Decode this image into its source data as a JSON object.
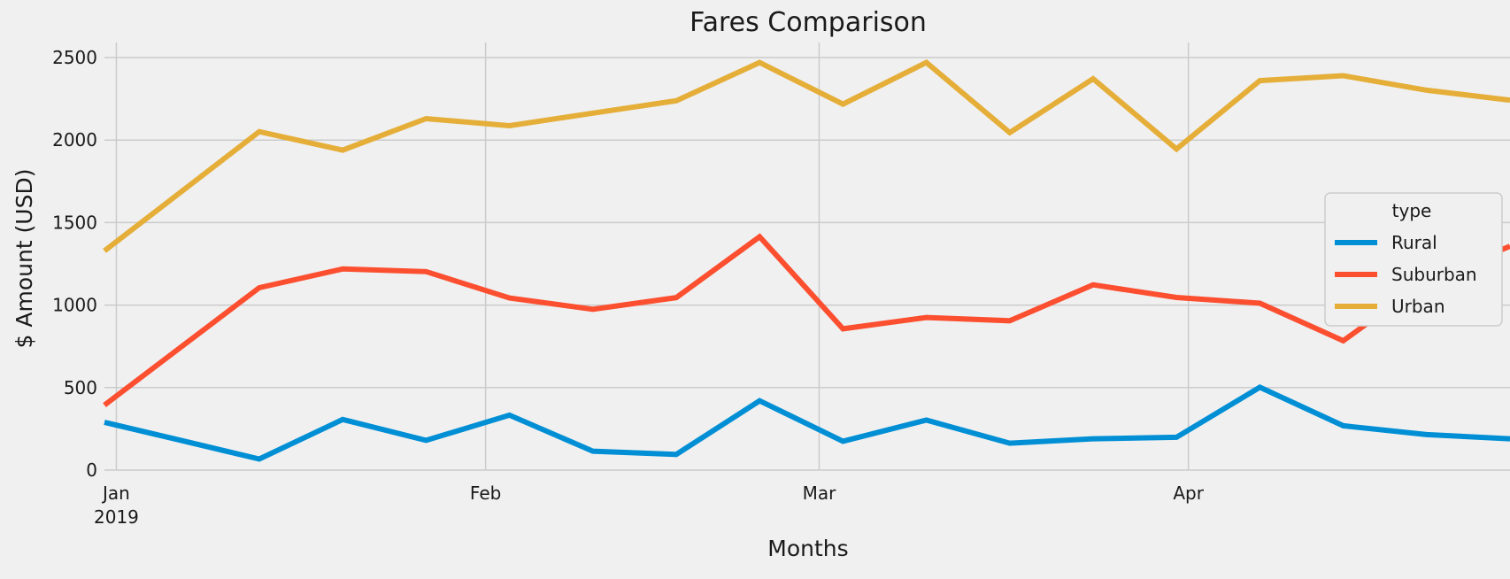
{
  "chart_data": {
    "type": "line",
    "title": "Fares Comparison",
    "xlabel": "Months",
    "ylabel": "$ Amount (USD)",
    "ylim": [
      0,
      2600
    ],
    "x_start": "2018-12-31",
    "x_end": "2019-04-28",
    "x": [
      "2019-01-06",
      "2019-01-13",
      "2019-01-20",
      "2019-01-27",
      "2019-02-03",
      "2019-02-10",
      "2019-02-17",
      "2019-02-24",
      "2019-03-03",
      "2019-03-10",
      "2019-03-17",
      "2019-03-24",
      "2019-03-31",
      "2019-04-07",
      "2019-04-14",
      "2019-04-21",
      "2019-04-28"
    ],
    "x_ticks": [
      {
        "date": "2019-01-01",
        "label": "Jan",
        "sublabel": "2019"
      },
      {
        "date": "2019-02-01",
        "label": "Feb",
        "sublabel": ""
      },
      {
        "date": "2019-03-01",
        "label": "Mar",
        "sublabel": ""
      },
      {
        "date": "2019-04-01",
        "label": "Apr",
        "sublabel": ""
      }
    ],
    "y_ticks": [
      0,
      500,
      1000,
      1500,
      2000,
      2500
    ],
    "grid": true,
    "legend": {
      "title": "type",
      "placement": "right"
    },
    "series": [
      {
        "name": "Rural",
        "color": "#008fd5",
        "values": [
          187,
          67,
          307,
          180,
          333,
          115,
          95,
          420,
          175,
          303,
          163,
          190,
          199,
          502,
          269,
          215,
          190
        ]
      },
      {
        "name": "Suburban",
        "color": "#fc4f30",
        "values": [
          722,
          1105,
          1219,
          1203,
          1043,
          975,
          1045,
          1414,
          856,
          925,
          905,
          1123,
          1046,
          1011,
          784,
          1149,
          1357
        ]
      },
      {
        "name": "Urban",
        "color": "#e5ae38",
        "values": [
          1662,
          2051,
          1939,
          2130,
          2087,
          2163,
          2238,
          2470,
          2218,
          2470,
          2045,
          2371,
          1946,
          2360,
          2390,
          2302,
          2242
        ]
      }
    ]
  }
}
